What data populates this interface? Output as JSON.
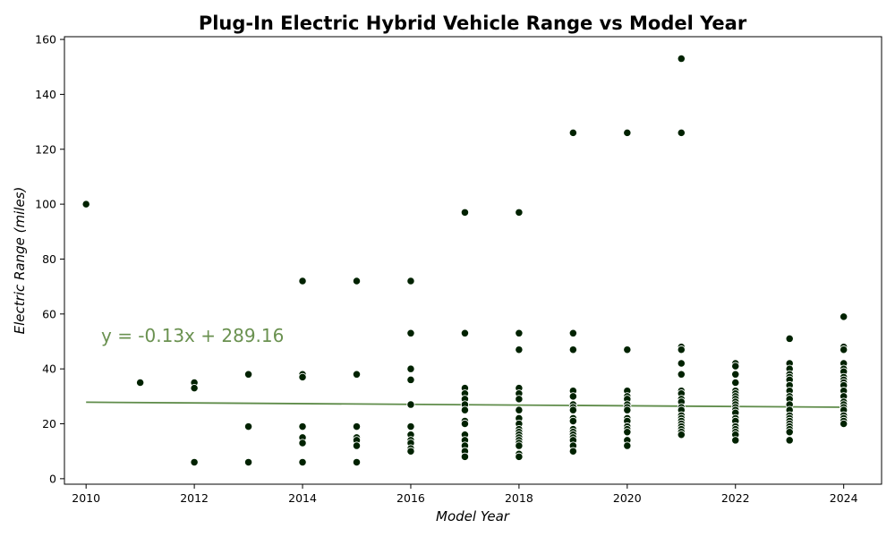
{
  "chart_data": {
    "type": "scatter",
    "title": "Plug-In Electric Hybrid Vehicle Range vs Model Year",
    "xlabel": "Model Year",
    "ylabel": "Electric Range (miles)",
    "xlim": [
      2009.6,
      2024.7
    ],
    "ylim": [
      -2,
      161
    ],
    "xticks": [
      2010,
      2012,
      2014,
      2016,
      2018,
      2020,
      2022,
      2024
    ],
    "yticks": [
      0,
      20,
      40,
      60,
      80,
      100,
      120,
      140,
      160
    ],
    "grid": false,
    "colors": {
      "points": "#002200",
      "point_edge": "#ffffff",
      "trend": "#5f8c4a",
      "equation": "#6a9150"
    },
    "trendline": {
      "slope": -0.13,
      "intercept": 289.16,
      "equation_text": "y = -0.13x + 289.16"
    },
    "series": [
      {
        "points": [
          [
            2010,
            100
          ],
          [
            2011,
            35
          ],
          [
            2012,
            35
          ],
          [
            2012,
            33
          ],
          [
            2012,
            6
          ],
          [
            2013,
            38
          ],
          [
            2013,
            19
          ],
          [
            2013,
            6
          ],
          [
            2014,
            72
          ],
          [
            2014,
            38
          ],
          [
            2014,
            37
          ],
          [
            2014,
            19
          ],
          [
            2014,
            15
          ],
          [
            2014,
            13
          ],
          [
            2014,
            6
          ],
          [
            2015,
            72
          ],
          [
            2015,
            38
          ],
          [
            2015,
            19
          ],
          [
            2015,
            15
          ],
          [
            2015,
            14
          ],
          [
            2015,
            12
          ],
          [
            2015,
            6
          ],
          [
            2016,
            72
          ],
          [
            2016,
            53
          ],
          [
            2016,
            40
          ],
          [
            2016,
            36
          ],
          [
            2016,
            27
          ],
          [
            2016,
            19
          ],
          [
            2016,
            16
          ],
          [
            2016,
            14
          ],
          [
            2016,
            13
          ],
          [
            2016,
            11
          ],
          [
            2016,
            10
          ],
          [
            2017,
            97
          ],
          [
            2017,
            53
          ],
          [
            2017,
            33
          ],
          [
            2017,
            31
          ],
          [
            2017,
            29
          ],
          [
            2017,
            27
          ],
          [
            2017,
            25
          ],
          [
            2017,
            21
          ],
          [
            2017,
            20
          ],
          [
            2017,
            16
          ],
          [
            2017,
            14
          ],
          [
            2017,
            12
          ],
          [
            2017,
            10
          ],
          [
            2017,
            8
          ],
          [
            2018,
            97
          ],
          [
            2018,
            53
          ],
          [
            2018,
            47
          ],
          [
            2018,
            33
          ],
          [
            2018,
            31
          ],
          [
            2018,
            29
          ],
          [
            2018,
            25
          ],
          [
            2018,
            22
          ],
          [
            2018,
            20
          ],
          [
            2018,
            18
          ],
          [
            2018,
            17
          ],
          [
            2018,
            16
          ],
          [
            2018,
            15
          ],
          [
            2018,
            14
          ],
          [
            2018,
            13
          ],
          [
            2018,
            12
          ],
          [
            2018,
            9
          ],
          [
            2018,
            8
          ],
          [
            2019,
            126
          ],
          [
            2019,
            53
          ],
          [
            2019,
            47
          ],
          [
            2019,
            32
          ],
          [
            2019,
            30
          ],
          [
            2019,
            27
          ],
          [
            2019,
            26
          ],
          [
            2019,
            25
          ],
          [
            2019,
            22
          ],
          [
            2019,
            21
          ],
          [
            2019,
            18
          ],
          [
            2019,
            17
          ],
          [
            2019,
            16
          ],
          [
            2019,
            15
          ],
          [
            2019,
            14
          ],
          [
            2019,
            12
          ],
          [
            2019,
            10
          ],
          [
            2020,
            126
          ],
          [
            2020,
            47
          ],
          [
            2020,
            32
          ],
          [
            2020,
            30
          ],
          [
            2020,
            29
          ],
          [
            2020,
            27
          ],
          [
            2020,
            26
          ],
          [
            2020,
            25
          ],
          [
            2020,
            22
          ],
          [
            2020,
            21
          ],
          [
            2020,
            19
          ],
          [
            2020,
            18
          ],
          [
            2020,
            17
          ],
          [
            2020,
            14
          ],
          [
            2020,
            12
          ],
          [
            2021,
            153
          ],
          [
            2021,
            126
          ],
          [
            2021,
            48
          ],
          [
            2021,
            47
          ],
          [
            2021,
            42
          ],
          [
            2021,
            38
          ],
          [
            2021,
            32
          ],
          [
            2021,
            31
          ],
          [
            2021,
            29
          ],
          [
            2021,
            28
          ],
          [
            2021,
            26
          ],
          [
            2021,
            25
          ],
          [
            2021,
            23
          ],
          [
            2021,
            22
          ],
          [
            2021,
            21
          ],
          [
            2021,
            20
          ],
          [
            2021,
            19
          ],
          [
            2021,
            18
          ],
          [
            2021,
            17
          ],
          [
            2021,
            16
          ],
          [
            2022,
            42
          ],
          [
            2022,
            41
          ],
          [
            2022,
            38
          ],
          [
            2022,
            35
          ],
          [
            2022,
            32
          ],
          [
            2022,
            31
          ],
          [
            2022,
            30
          ],
          [
            2022,
            29
          ],
          [
            2022,
            28
          ],
          [
            2022,
            27
          ],
          [
            2022,
            26
          ],
          [
            2022,
            25
          ],
          [
            2022,
            24
          ],
          [
            2022,
            22
          ],
          [
            2022,
            21
          ],
          [
            2022,
            19
          ],
          [
            2022,
            18
          ],
          [
            2022,
            17
          ],
          [
            2022,
            16
          ],
          [
            2022,
            14
          ],
          [
            2023,
            51
          ],
          [
            2023,
            42
          ],
          [
            2023,
            40
          ],
          [
            2023,
            38
          ],
          [
            2023,
            37
          ],
          [
            2023,
            36
          ],
          [
            2023,
            34
          ],
          [
            2023,
            32
          ],
          [
            2023,
            30
          ],
          [
            2023,
            29
          ],
          [
            2023,
            27
          ],
          [
            2023,
            25
          ],
          [
            2023,
            23
          ],
          [
            2023,
            22
          ],
          [
            2023,
            21
          ],
          [
            2023,
            20
          ],
          [
            2023,
            19
          ],
          [
            2023,
            18
          ],
          [
            2023,
            17
          ],
          [
            2023,
            14
          ],
          [
            2024,
            59
          ],
          [
            2024,
            48
          ],
          [
            2024,
            47
          ],
          [
            2024,
            42
          ],
          [
            2024,
            40
          ],
          [
            2024,
            39
          ],
          [
            2024,
            37
          ],
          [
            2024,
            36
          ],
          [
            2024,
            35
          ],
          [
            2024,
            34
          ],
          [
            2024,
            32
          ],
          [
            2024,
            30
          ],
          [
            2024,
            28
          ],
          [
            2024,
            27
          ],
          [
            2024,
            26
          ],
          [
            2024,
            25
          ],
          [
            2024,
            23
          ],
          [
            2024,
            22
          ],
          [
            2024,
            21
          ],
          [
            2024,
            20
          ]
        ]
      }
    ]
  }
}
